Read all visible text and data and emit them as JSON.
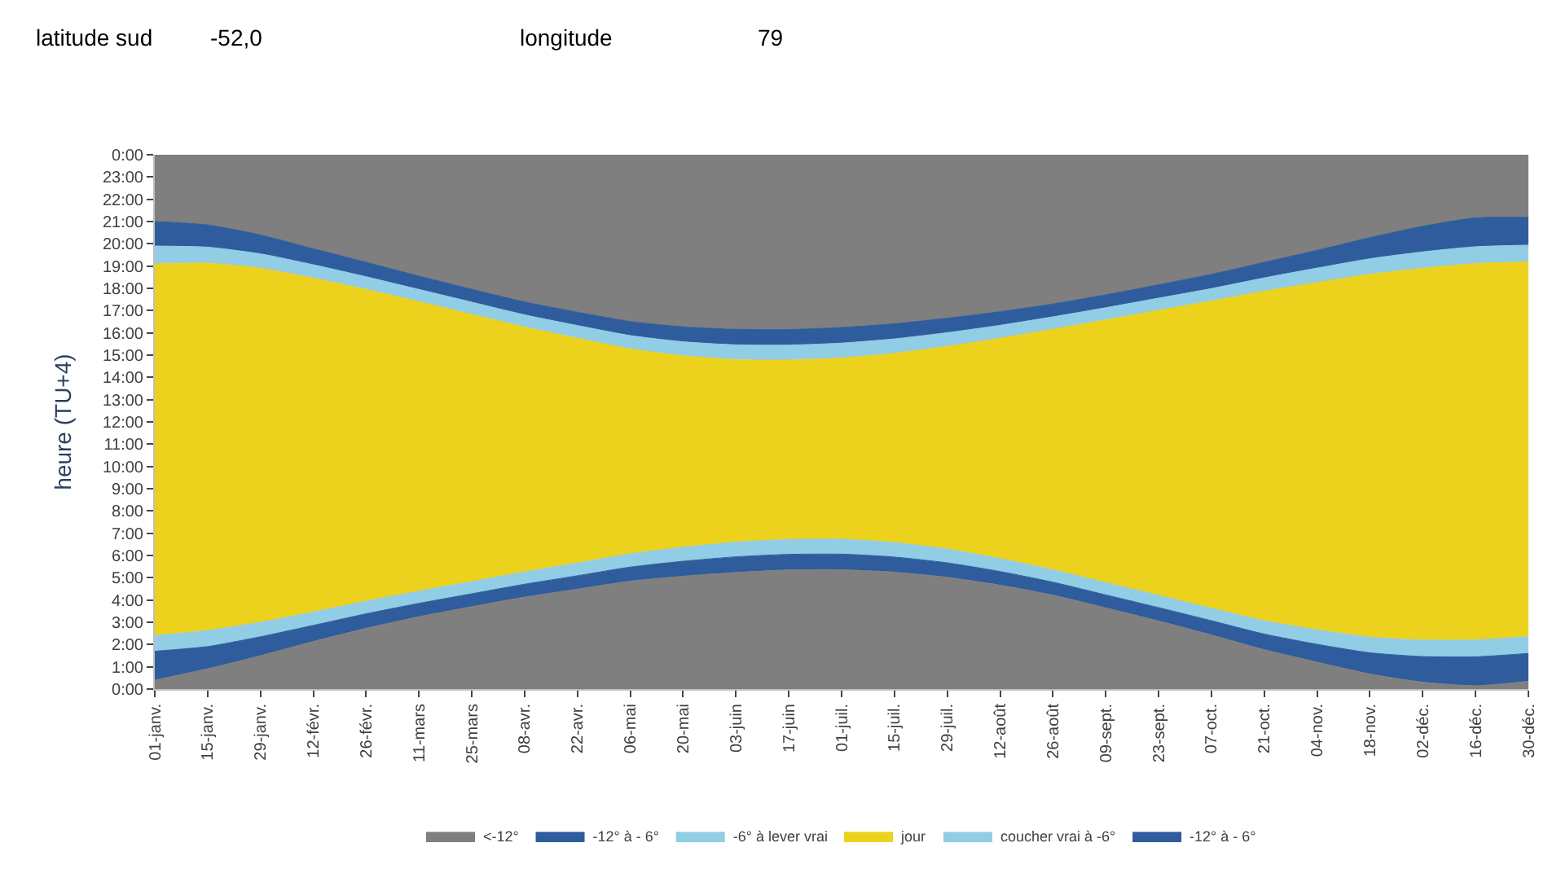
{
  "chart_data": {
    "type": "area",
    "stacked": true,
    "ylabel": "heure (TU+4)",
    "annotations": [
      "latitude sud",
      "-52,0",
      "longitude",
      "79"
    ],
    "categories": [
      "01-janv.",
      "15-janv.",
      "29-janv.",
      "12-févr.",
      "26-févr.",
      "11-mars",
      "25-mars",
      "08-avr.",
      "22-avr.",
      "06-mai",
      "20-mai",
      "03-juin",
      "17-juin",
      "01-juil.",
      "15-juil.",
      "29-juil.",
      "12-août",
      "26-août",
      "09-sept.",
      "23-sept.",
      "07-oct.",
      "21-oct.",
      "04-nov.",
      "18-nov.",
      "02-déc.",
      "16-déc.",
      "30-déc."
    ],
    "series": [
      {
        "name": "<-12°",
        "color": "#7f7f7f",
        "values": [
          0.4,
          0.91,
          1.5,
          2.14,
          2.73,
          3.25,
          3.7,
          4.13,
          4.49,
          4.85,
          5.07,
          5.24,
          5.35,
          5.36,
          5.25,
          5.02,
          4.67,
          4.22,
          3.65,
          3.06,
          2.43,
          1.77,
          1.21,
          0.68,
          0.31,
          0.15,
          0.35
        ]
      },
      {
        "name": "-12° à - 6°",
        "color": "#2e5c9c",
        "values": [
          1.3,
          1.0,
          0.85,
          0.72,
          0.65,
          0.6,
          0.58,
          0.58,
          0.6,
          0.63,
          0.67,
          0.7,
          0.7,
          0.7,
          0.68,
          0.65,
          0.61,
          0.58,
          0.58,
          0.6,
          0.64,
          0.7,
          0.8,
          0.95,
          1.15,
          1.3,
          1.25
        ]
      },
      {
        "name": "-6° à lever vrai",
        "color": "#92cde6",
        "values": [
          0.7,
          0.72,
          0.65,
          0.6,
          0.57,
          0.55,
          0.55,
          0.55,
          0.57,
          0.6,
          0.63,
          0.66,
          0.67,
          0.67,
          0.65,
          0.62,
          0.58,
          0.56,
          0.55,
          0.55,
          0.56,
          0.6,
          0.65,
          0.7,
          0.74,
          0.76,
          0.75
        ]
      },
      {
        "name": "jour",
        "color": "#ecd21c",
        "values": [
          16.7,
          16.5,
          15.9,
          15.0,
          14.0,
          13.0,
          12.0,
          11.0,
          10.1,
          9.2,
          8.6,
          8.2,
          8.06,
          8.14,
          8.5,
          9.1,
          9.9,
          10.8,
          11.8,
          12.8,
          13.8,
          14.8,
          15.6,
          16.3,
          16.7,
          16.9,
          16.84
        ]
      },
      {
        "name": "coucher vrai à -6°",
        "color": "#92cde6",
        "values": [
          0.8,
          0.72,
          0.65,
          0.6,
          0.57,
          0.55,
          0.55,
          0.55,
          0.57,
          0.6,
          0.63,
          0.66,
          0.67,
          0.67,
          0.65,
          0.62,
          0.58,
          0.56,
          0.55,
          0.55,
          0.56,
          0.6,
          0.65,
          0.7,
          0.74,
          0.76,
          0.75
        ]
      },
      {
        "name": "-12° à - 6°",
        "color": "#2e5c9c",
        "values": [
          1.1,
          1.0,
          0.85,
          0.72,
          0.65,
          0.6,
          0.58,
          0.58,
          0.6,
          0.63,
          0.67,
          0.7,
          0.7,
          0.7,
          0.68,
          0.65,
          0.61,
          0.58,
          0.58,
          0.6,
          0.64,
          0.7,
          0.8,
          0.95,
          1.15,
          1.3,
          1.25
        ]
      },
      {
        "color": "#7f7f7f",
        "values": [
          3.0,
          3.15,
          3.6,
          4.22,
          4.83,
          5.45,
          6.04,
          6.61,
          7.07,
          7.49,
          7.73,
          7.84,
          7.85,
          7.76,
          7.59,
          7.34,
          7.05,
          6.7,
          6.29,
          5.84,
          5.37,
          4.83,
          4.29,
          3.72,
          3.21,
          2.83,
          2.81
        ]
      }
    ],
    "ylim": [
      0,
      24
    ],
    "yticks": [
      {
        "value": 0,
        "label": "0:00"
      },
      {
        "value": 1,
        "label": "1:00"
      },
      {
        "value": 2,
        "label": "2:00"
      },
      {
        "value": 3,
        "label": "3:00"
      },
      {
        "value": 4,
        "label": "4:00"
      },
      {
        "value": 5,
        "label": "5:00"
      },
      {
        "value": 6,
        "label": "6:00"
      },
      {
        "value": 7,
        "label": "7:00"
      },
      {
        "value": 8,
        "label": "8:00"
      },
      {
        "value": 9,
        "label": "9:00"
      },
      {
        "value": 10,
        "label": "10:00"
      },
      {
        "value": 11,
        "label": "11:00"
      },
      {
        "value": 12,
        "label": "12:00"
      },
      {
        "value": 13,
        "label": "13:00"
      },
      {
        "value": 14,
        "label": "14:00"
      },
      {
        "value": 15,
        "label": "15:00"
      },
      {
        "value": 16,
        "label": "16:00"
      },
      {
        "value": 17,
        "label": "17:00"
      },
      {
        "value": 18,
        "label": "18:00"
      },
      {
        "value": 19,
        "label": "19:00"
      },
      {
        "value": 20,
        "label": "20:00"
      },
      {
        "value": 21,
        "label": "21:00"
      },
      {
        "value": 22,
        "label": "22:00"
      },
      {
        "value": 23,
        "label": "23:00"
      },
      {
        "value": 24,
        "label": "0:00"
      }
    ],
    "legend": "bottom"
  }
}
